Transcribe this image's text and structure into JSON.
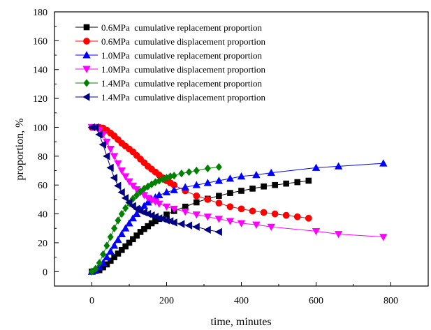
{
  "chart_data": {
    "type": "line",
    "xlabel": "time, minutes",
    "ylabel": "proportion,  %",
    "xlim": [
      -100,
      900
    ],
    "ylim": [
      -10,
      180
    ],
    "x_ticks": [
      0,
      200,
      400,
      600,
      800
    ],
    "y_ticks": [
      0,
      20,
      40,
      60,
      80,
      100,
      120,
      140,
      160,
      180
    ],
    "grid": false,
    "legend_position": "top-left",
    "series": [
      {
        "name": "0.6MPa  cumulative replacement proportion",
        "marker": "square",
        "color": "#000000",
        "x": [
          0,
          10,
          20,
          30,
          40,
          50,
          60,
          70,
          80,
          90,
          100,
          110,
          120,
          130,
          140,
          150,
          160,
          170,
          180,
          200,
          220,
          250,
          280,
          310,
          340,
          370,
          400,
          430,
          460,
          490,
          520,
          550,
          580
        ],
        "y": [
          0,
          0.5,
          1,
          3,
          5,
          7.5,
          10,
          12.5,
          15,
          17.5,
          20,
          22.5,
          25,
          27.5,
          29.5,
          31.5,
          33.5,
          35,
          36.5,
          39.5,
          42,
          45,
          48,
          50.5,
          52.5,
          54.5,
          56,
          57.5,
          59,
          60,
          61,
          62,
          63
        ]
      },
      {
        "name": "0.6MPa  cumulative displacement proportion",
        "marker": "circle",
        "color": "#ff0000",
        "x": [
          0,
          10,
          20,
          30,
          40,
          50,
          60,
          70,
          80,
          90,
          100,
          110,
          120,
          130,
          140,
          150,
          160,
          170,
          180,
          190,
          200,
          210,
          220,
          250,
          280,
          310,
          340,
          370,
          400,
          430,
          460,
          490,
          520,
          550,
          580
        ],
        "y": [
          100,
          100,
          100,
          99.5,
          98,
          96,
          94,
          91.5,
          89,
          87,
          85,
          83,
          80.5,
          78,
          75.5,
          73,
          71,
          69,
          67,
          65,
          63,
          61.5,
          60,
          56,
          52.5,
          50,
          47.5,
          45,
          43.5,
          42,
          41,
          40,
          39,
          38,
          37
        ]
      },
      {
        "name": "1.0MPa  cumulative replacement proportion",
        "marker": "triangle-up",
        "color": "#0000ff",
        "x": [
          0,
          10,
          20,
          30,
          40,
          50,
          60,
          70,
          80,
          90,
          100,
          110,
          120,
          130,
          140,
          150,
          160,
          170,
          180,
          200,
          220,
          250,
          280,
          310,
          340,
          370,
          400,
          440,
          480,
          600,
          660,
          780
        ],
        "y": [
          0,
          1,
          3,
          6,
          10,
          14,
          18,
          22,
          26,
          30,
          33.5,
          37,
          40,
          43,
          45.5,
          48,
          50,
          51.5,
          53,
          55,
          56.5,
          58.5,
          60,
          61.5,
          63,
          64.5,
          66,
          67,
          68.5,
          72,
          73,
          75
        ]
      },
      {
        "name": "1.0MPa  cumulative displacement proportion",
        "marker": "triangle-down",
        "color": "#ff00ff",
        "x": [
          0,
          10,
          20,
          30,
          40,
          50,
          60,
          70,
          80,
          90,
          100,
          110,
          120,
          130,
          140,
          150,
          160,
          170,
          180,
          200,
          220,
          250,
          280,
          310,
          340,
          370,
          400,
          440,
          480,
          600,
          660,
          780
        ],
        "y": [
          100,
          100,
          98,
          95,
          90,
          85,
          80,
          75,
          70,
          66,
          62.5,
          59.5,
          57,
          55,
          53,
          51,
          49.5,
          48.5,
          47,
          45,
          43.5,
          41.5,
          39.5,
          38,
          36.5,
          35,
          33.5,
          32.5,
          31,
          28,
          26,
          24
        ]
      },
      {
        "name": "1.4MPa  cumulative replacement proportion",
        "marker": "diamond",
        "color": "#008000",
        "x": [
          0,
          10,
          20,
          30,
          40,
          50,
          60,
          70,
          80,
          90,
          100,
          110,
          120,
          130,
          140,
          150,
          160,
          170,
          180,
          190,
          200,
          210,
          220,
          240,
          260,
          280,
          310,
          340
        ],
        "y": [
          0,
          2,
          6,
          12,
          18,
          24,
          30,
          35.5,
          40,
          44,
          47.5,
          50.5,
          53,
          55.5,
          57.5,
          59,
          60.5,
          62,
          63,
          64,
          65,
          66,
          66.5,
          68,
          69,
          70,
          71.5,
          72.5
        ]
      },
      {
        "name": "1.4MPa  cumulative displacement proportion",
        "marker": "triangle-left",
        "color": "#000080",
        "x": [
          0,
          10,
          20,
          30,
          40,
          50,
          60,
          70,
          80,
          90,
          100,
          110,
          120,
          130,
          140,
          150,
          160,
          170,
          180,
          190,
          200,
          210,
          220,
          240,
          260,
          280,
          310,
          340
        ],
        "y": [
          100,
          100,
          95,
          88,
          80,
          72,
          65,
          59.5,
          55,
          51,
          48,
          45.5,
          43.5,
          42,
          41,
          40,
          39,
          38,
          37,
          36.5,
          35.5,
          35,
          34,
          33,
          32,
          31,
          29,
          27.5
        ]
      }
    ]
  }
}
